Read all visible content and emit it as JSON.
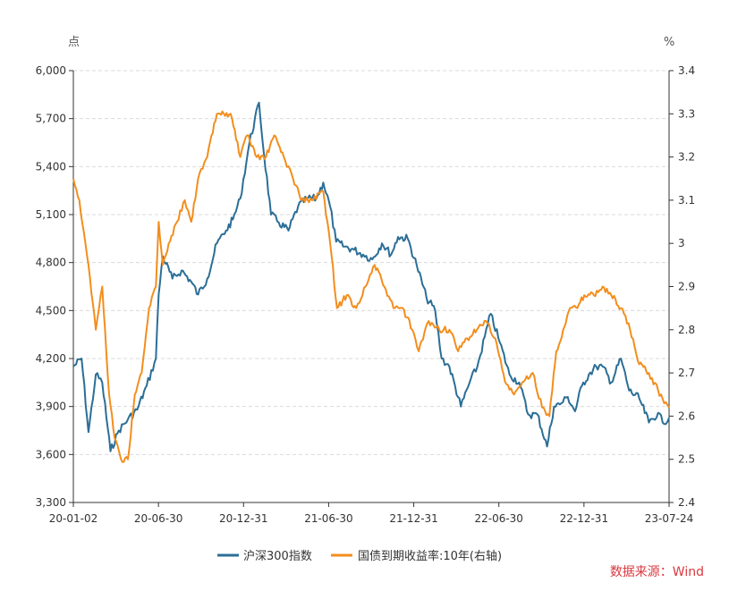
{
  "chart_data": {
    "type": "line",
    "left_axis": {
      "unit": "点",
      "range": [
        3300,
        6000
      ],
      "ticks": [
        "3,300",
        "3,600",
        "3,900",
        "4,200",
        "4,500",
        "4,800",
        "5,100",
        "5,400",
        "5,700",
        "6,000"
      ]
    },
    "right_axis": {
      "unit": "%",
      "range": [
        2.4,
        3.4
      ],
      "ticks": [
        "2.4",
        "2.5",
        "2.6",
        "2.7",
        "2.8",
        "2.9",
        "3",
        "3.1",
        "3.2",
        "3.3",
        "3.4"
      ]
    },
    "x_ticks": [
      "20-01-02",
      "20-06-30",
      "20-12-31",
      "21-06-30",
      "21-12-31",
      "22-06-30",
      "22-12-31",
      "23-07-24"
    ],
    "x_range": [
      "2020-01-02",
      "2023-07-24"
    ],
    "grid": "horizontal-dashed",
    "legend_position": "bottom",
    "series": [
      {
        "name": "沪深300指数",
        "axis": "left",
        "color": "#2b6e96",
        "x": [
          "2020-01-02",
          "2020-01-20",
          "2020-02-04",
          "2020-02-20",
          "2020-03-05",
          "2020-03-23",
          "2020-04-10",
          "2020-04-30",
          "2020-05-20",
          "2020-06-10",
          "2020-06-30",
          "2020-07-06",
          "2020-07-15",
          "2020-08-05",
          "2020-08-25",
          "2020-09-15",
          "2020-09-30",
          "2020-10-20",
          "2020-11-10",
          "2020-11-30",
          "2020-12-15",
          "2020-12-31",
          "2021-01-20",
          "2021-02-10",
          "2021-02-18",
          "2021-03-08",
          "2021-03-25",
          "2021-04-15",
          "2021-05-06",
          "2021-05-25",
          "2021-06-15",
          "2021-06-30",
          "2021-07-15",
          "2021-07-28",
          "2021-08-15",
          "2021-09-05",
          "2021-09-25",
          "2021-10-15",
          "2021-11-05",
          "2021-11-25",
          "2021-12-10",
          "2021-12-31",
          "2022-01-20",
          "2022-02-10",
          "2022-03-01",
          "2022-03-15",
          "2022-04-01",
          "2022-04-26",
          "2022-05-15",
          "2022-06-01",
          "2022-06-30",
          "2022-07-20",
          "2022-08-10",
          "2022-08-31",
          "2022-09-20",
          "2022-10-10",
          "2022-10-31",
          "2022-11-15",
          "2022-12-01",
          "2022-12-15",
          "2022-12-31",
          "2023-01-15",
          "2023-01-30",
          "2023-02-15",
          "2023-03-01",
          "2023-03-20",
          "2023-04-10",
          "2023-04-28",
          "2023-05-20",
          "2023-06-10",
          "2023-06-30",
          "2023-07-10",
          "2023-07-24"
        ],
        "values": [
          4150,
          4200,
          3740,
          4100,
          4050,
          3620,
          3750,
          3820,
          3880,
          4030,
          4200,
          4600,
          4840,
          4700,
          4750,
          4680,
          4600,
          4700,
          4920,
          5000,
          5070,
          5200,
          5550,
          5800,
          5550,
          5100,
          5050,
          5000,
          5150,
          5200,
          5200,
          5300,
          5150,
          4930,
          4900,
          4880,
          4850,
          4820,
          4920,
          4850,
          4960,
          4950,
          4780,
          4580,
          4500,
          4200,
          4150,
          3900,
          4050,
          4150,
          4480,
          4300,
          4100,
          4050,
          3850,
          3850,
          3650,
          3900,
          3920,
          3960,
          3870,
          4030,
          4100,
          4150,
          4150,
          4050,
          4200,
          4000,
          3950,
          3800,
          3860,
          3800,
          3830
        ]
      },
      {
        "name": "国债到期收益率:10年(右轴)",
        "axis": "right",
        "color": "#f28e1e",
        "x": [
          "2020-01-02",
          "2020-01-15",
          "2020-02-04",
          "2020-02-20",
          "2020-03-05",
          "2020-03-20",
          "2020-04-01",
          "2020-04-15",
          "2020-04-30",
          "2020-05-15",
          "2020-05-30",
          "2020-06-15",
          "2020-06-30",
          "2020-07-06",
          "2020-07-15",
          "2020-07-28",
          "2020-08-15",
          "2020-09-01",
          "2020-09-15",
          "2020-09-30",
          "2020-10-20",
          "2020-11-10",
          "2020-11-25",
          "2020-12-10",
          "2020-12-31",
          "2021-01-15",
          "2021-02-05",
          "2021-02-25",
          "2021-03-15",
          "2021-04-05",
          "2021-04-25",
          "2021-05-15",
          "2021-06-05",
          "2021-06-30",
          "2021-07-15",
          "2021-07-30",
          "2021-08-20",
          "2021-09-10",
          "2021-09-30",
          "2021-10-20",
          "2021-11-10",
          "2021-11-30",
          "2021-12-20",
          "2022-01-10",
          "2022-01-24",
          "2022-02-15",
          "2022-03-10",
          "2022-04-01",
          "2022-04-20",
          "2022-05-10",
          "2022-05-31",
          "2022-06-20",
          "2022-07-10",
          "2022-07-31",
          "2022-08-20",
          "2022-09-10",
          "2022-09-30",
          "2022-10-20",
          "2022-11-05",
          "2022-11-20",
          "2022-12-05",
          "2022-12-20",
          "2023-01-05",
          "2023-01-20",
          "2023-02-10",
          "2023-03-01",
          "2023-03-20",
          "2023-04-10",
          "2023-04-30",
          "2023-05-20",
          "2023-06-10",
          "2023-06-30",
          "2023-07-10",
          "2023-07-24"
        ],
        "values": [
          3.15,
          3.1,
          2.95,
          2.8,
          2.9,
          2.65,
          2.55,
          2.5,
          2.5,
          2.65,
          2.7,
          2.85,
          2.9,
          3.05,
          2.95,
          3.0,
          3.05,
          3.1,
          3.05,
          3.15,
          3.2,
          3.3,
          3.3,
          3.3,
          3.2,
          3.25,
          3.2,
          3.2,
          3.25,
          3.2,
          3.15,
          3.1,
          3.1,
          3.12,
          3.0,
          2.85,
          2.88,
          2.85,
          2.9,
          2.95,
          2.9,
          2.85,
          2.85,
          2.8,
          2.75,
          2.82,
          2.8,
          2.8,
          2.75,
          2.78,
          2.8,
          2.82,
          2.78,
          2.68,
          2.65,
          2.68,
          2.7,
          2.62,
          2.6,
          2.75,
          2.8,
          2.85,
          2.85,
          2.88,
          2.88,
          2.9,
          2.88,
          2.85,
          2.8,
          2.72,
          2.7,
          2.66,
          2.64,
          2.62
        ]
      }
    ]
  },
  "source": "数据来源：Wind"
}
